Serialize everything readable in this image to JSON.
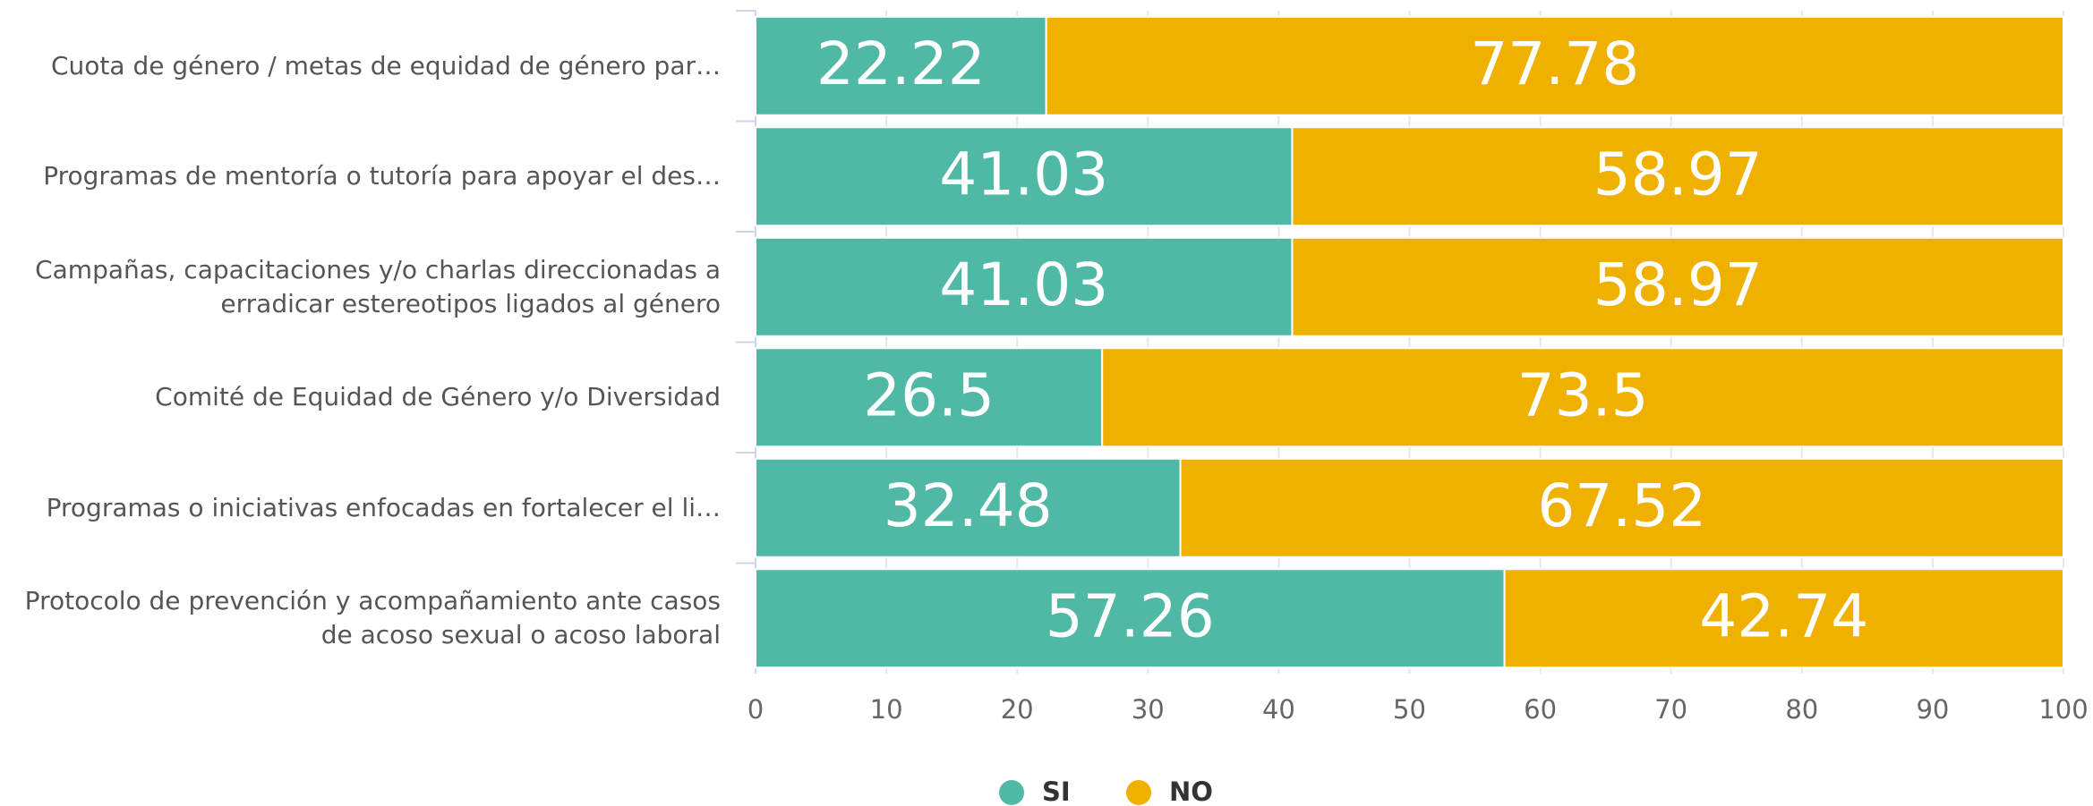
{
  "chart_data": {
    "type": "stacked-bar-horizontal",
    "categories": [
      "Cuota de género / metas de equidad de género par…",
      "Programas de mentoría o tutoría para apoyar el des…",
      "Campañas, capacitaciones y/o charlas direccionadas a erradicar estereotipos ligados al género",
      "Comité de Equidad de Género y/o Diversidad",
      "Programas o iniciativas enfocadas en fortalecer el li…",
      "Protocolo de prevención y acompañamiento ante casos de acoso sexual o acoso laboral"
    ],
    "series": [
      {
        "name": "SI",
        "color": "#4fb9a6",
        "values": [
          22.22,
          41.03,
          41.03,
          26.5,
          32.48,
          57.26
        ]
      },
      {
        "name": "NO",
        "color": "#f0b000",
        "values": [
          77.78,
          58.97,
          58.97,
          73.5,
          67.52,
          42.74
        ]
      }
    ],
    "xlim": [
      0,
      100
    ],
    "xticks": [
      0,
      10,
      20,
      30,
      40,
      50,
      60,
      70,
      80,
      90,
      100
    ],
    "grid": true,
    "legend": "bottom"
  }
}
